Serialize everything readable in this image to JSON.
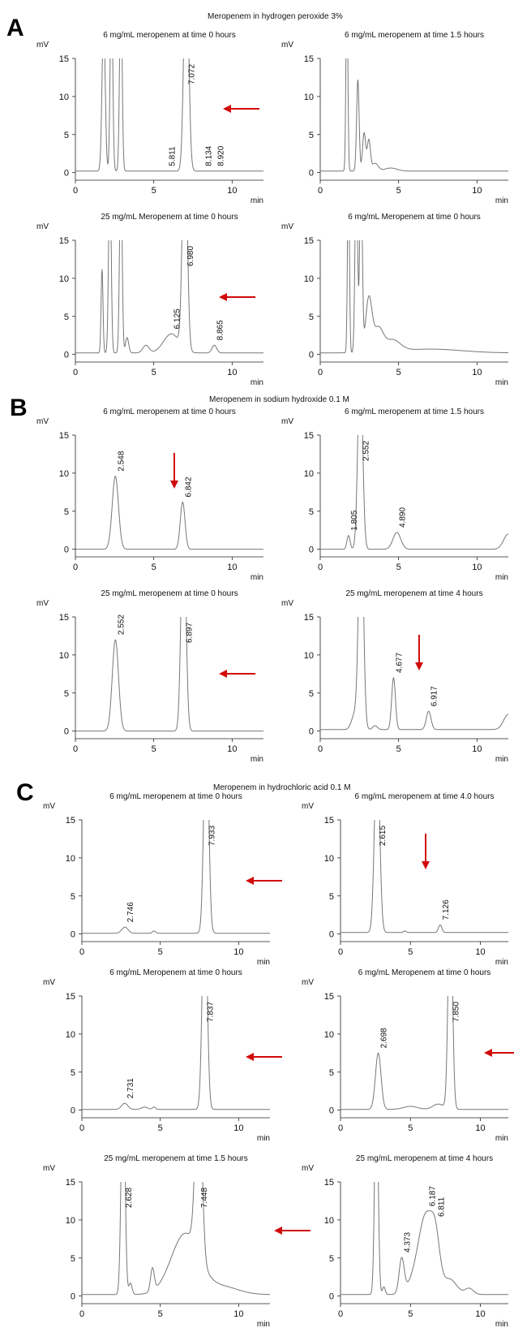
{
  "sections": [
    {
      "letter": "A",
      "title": "Meropenem in hydrogen peroxide 3%"
    },
    {
      "letter": "B",
      "title": "Meropenem in sodium hydroxide 0.1 M"
    },
    {
      "letter": "C",
      "title": "Meropenem in  hydrochloric acid 0.1 M"
    }
  ],
  "chart_data": [
    {
      "type": "line",
      "section": "A",
      "title": "6 mg/mL meropenem at time 0 hours",
      "ylabel": "mV",
      "xlabel": "min",
      "xlim": [
        0,
        12
      ],
      "ylim": [
        -1,
        15
      ],
      "xticks": [
        0,
        5,
        10
      ],
      "yticks": [
        0,
        5,
        10,
        15
      ],
      "peaks": [
        [
          1.8,
          1,
          0.1,
          20
        ],
        [
          2.3,
          1,
          0.08,
          25
        ],
        [
          2.9,
          1,
          0.08,
          25
        ],
        [
          5.811,
          0.3,
          0.25,
          0
        ],
        [
          7.072,
          1,
          0.15,
          30
        ],
        [
          8.134,
          0.2,
          0.2,
          0
        ],
        [
          8.92,
          0.2,
          0.2,
          0
        ]
      ],
      "baseline": 0.2,
      "annotations": [
        "5.811",
        "7.072",
        "8.134",
        "8.920"
      ],
      "arrow": "left"
    },
    {
      "type": "line",
      "section": "A",
      "title": "6 mg/mL meropenem at time 1.5 hours",
      "ylabel": "mV",
      "xlabel": "min",
      "xlim": [
        0,
        12
      ],
      "ylim": [
        -1,
        15
      ],
      "xticks": [
        0,
        5,
        10
      ],
      "yticks": [
        0,
        5,
        10,
        15
      ],
      "peaks": [
        [
          1.7,
          1,
          0.06,
          25
        ],
        [
          2.4,
          1,
          0.08,
          12
        ],
        [
          2.8,
          1,
          0.1,
          5
        ],
        [
          3.1,
          1,
          0.1,
          4
        ],
        [
          3.5,
          0.5,
          0.2,
          1
        ],
        [
          4.5,
          0.3,
          0.4,
          0.4
        ]
      ],
      "baseline": 0.2,
      "annotations": [],
      "arrow": ""
    },
    {
      "type": "line",
      "section": "A",
      "title": "25 mg/mL Meropenem at time 0 hours",
      "ylabel": "mV",
      "xlabel": "min",
      "xlim": [
        0,
        12
      ],
      "ylim": [
        -1,
        15
      ],
      "xticks": [
        0,
        5,
        10
      ],
      "yticks": [
        0,
        5,
        10,
        15
      ],
      "peaks": [
        [
          1.7,
          1,
          0.06,
          11
        ],
        [
          2.2,
          1,
          0.08,
          25
        ],
        [
          2.9,
          1,
          0.08,
          25
        ],
        [
          3.3,
          1,
          0.1,
          2
        ],
        [
          4.5,
          0.5,
          0.2,
          1
        ],
        [
          6.125,
          0.5,
          0.5,
          2.5
        ],
        [
          6.98,
          1,
          0.15,
          30
        ],
        [
          8.865,
          0.3,
          0.15,
          1
        ]
      ],
      "baseline": 0.2,
      "annotations": [
        "6.125",
        "6.980",
        "8.865"
      ],
      "arrow": "left"
    },
    {
      "type": "line",
      "section": "A",
      "title": "6 mg/mL Meropenem at time 0 hours",
      "ylabel": "mV",
      "xlabel": "min",
      "xlim": [
        0,
        12
      ],
      "ylim": [
        -1,
        15
      ],
      "xticks": [
        0,
        5,
        10
      ],
      "yticks": [
        0,
        5,
        10,
        15
      ],
      "peaks": [
        [
          1.8,
          1,
          0.06,
          25
        ],
        [
          2.3,
          1,
          0.08,
          25
        ],
        [
          2.6,
          1,
          0.08,
          25
        ],
        [
          3.1,
          1,
          0.2,
          7
        ],
        [
          3.7,
          1,
          0.3,
          3
        ],
        [
          4.6,
          1,
          0.5,
          1.5
        ],
        [
          7,
          1,
          2,
          0.5
        ]
      ],
      "baseline": 0.2,
      "annotations": [],
      "arrow": ""
    },
    {
      "type": "line",
      "section": "B",
      "title": "6 mg/mL meropenem at time 0 hours",
      "ylabel": "mV",
      "xlabel": "min",
      "xlim": [
        0,
        12
      ],
      "ylim": [
        -1,
        15
      ],
      "xticks": [
        0,
        5,
        10
      ],
      "yticks": [
        0,
        5,
        10,
        15
      ],
      "peaks": [
        [
          2.548,
          1,
          0.2,
          9.6
        ],
        [
          6.842,
          1,
          0.15,
          6.2
        ]
      ],
      "baseline": 0,
      "annotations": [
        "2.548",
        "6.842"
      ],
      "arrow": "down"
    },
    {
      "type": "line",
      "section": "B",
      "title": "6 mg/mL meropenem at time 1.5 hours",
      "ylabel": "mV",
      "xlabel": "min",
      "xlim": [
        0,
        12
      ],
      "ylim": [
        -1,
        15
      ],
      "xticks": [
        0,
        5,
        10
      ],
      "yticks": [
        0,
        5,
        10,
        15
      ],
      "peaks": [
        [
          1.805,
          1,
          0.1,
          1.8
        ],
        [
          2.552,
          1,
          0.15,
          25
        ],
        [
          4.89,
          1,
          0.25,
          2.2
        ],
        [
          12,
          1,
          0.3,
          2
        ]
      ],
      "baseline": 0,
      "annotations": [
        "1.805",
        "2.552",
        "4.890"
      ],
      "arrow": ""
    },
    {
      "type": "line",
      "section": "B",
      "title": "25 mg/mL meropenem at time 0 hours",
      "ylabel": "mV",
      "xlabel": "min",
      "xlim": [
        0,
        12
      ],
      "ylim": [
        -1,
        15
      ],
      "xticks": [
        0,
        5,
        10
      ],
      "yticks": [
        0,
        5,
        10,
        15
      ],
      "peaks": [
        [
          2.552,
          1,
          0.2,
          12
        ],
        [
          6.897,
          1,
          0.15,
          30
        ]
      ],
      "baseline": 0,
      "annotations": [
        "2.552",
        "6.897"
      ],
      "arrow": "left"
    },
    {
      "type": "line",
      "section": "B",
      "title": "25 mg/mL meropenem at time 4 hours",
      "ylabel": "mV",
      "xlabel": "min",
      "xlim": [
        0,
        12
      ],
      "ylim": [
        -1,
        15
      ],
      "xticks": [
        0,
        5,
        10
      ],
      "yticks": [
        0,
        5,
        10,
        15
      ],
      "peaks": [
        [
          2.2,
          1,
          0.2,
          2
        ],
        [
          2.6,
          1,
          0.15,
          30
        ],
        [
          3.5,
          1,
          0.15,
          0.5
        ],
        [
          4.677,
          1,
          0.12,
          6.8
        ],
        [
          6.917,
          1,
          0.15,
          2.4
        ],
        [
          12,
          1,
          0.3,
          2
        ]
      ],
      "baseline": 0.2,
      "annotations": [
        "4.677",
        "6.917"
      ],
      "arrow": "down"
    },
    {
      "type": "line",
      "section": "C",
      "title": "6 mg/mL meropenem at time 0 hours",
      "ylabel": "mV",
      "xlabel": "min",
      "xlim": [
        0,
        12
      ],
      "ylim": [
        -1,
        15
      ],
      "xticks": [
        0,
        5,
        10
      ],
      "yticks": [
        0,
        5,
        10,
        15
      ],
      "peaks": [
        [
          2.746,
          1,
          0.2,
          0.8
        ],
        [
          4.6,
          1,
          0.1,
          0.3
        ],
        [
          7.933,
          1,
          0.15,
          30
        ]
      ],
      "baseline": 0.1,
      "annotations": [
        "2.746",
        "7.933"
      ],
      "arrow": "left"
    },
    {
      "type": "line",
      "section": "C",
      "title": "6 mg/mL meropenem at time 4.0 hours",
      "ylabel": "mV",
      "xlabel": "min",
      "xlim": [
        0,
        12
      ],
      "ylim": [
        -1,
        15
      ],
      "xticks": [
        0,
        5,
        10
      ],
      "yticks": [
        0,
        5,
        10,
        15
      ],
      "peaks": [
        [
          2.615,
          1,
          0.18,
          25
        ],
        [
          4.6,
          1,
          0.1,
          0.2
        ],
        [
          7.126,
          1,
          0.12,
          1
        ]
      ],
      "baseline": 0.2,
      "annotations": [
        "2.615",
        "7.126"
      ],
      "arrow": "down"
    },
    {
      "type": "line",
      "section": "C",
      "title": "6 mg/mL Meropenem at time 0 hours",
      "ylabel": "mV",
      "xlabel": "min",
      "xlim": [
        0,
        12
      ],
      "ylim": [
        -1,
        15
      ],
      "xticks": [
        0,
        5,
        10
      ],
      "yticks": [
        0,
        5,
        10,
        15
      ],
      "peaks": [
        [
          2.731,
          1,
          0.2,
          0.8
        ],
        [
          4,
          1,
          0.2,
          0.3
        ],
        [
          4.6,
          1,
          0.1,
          0.3
        ],
        [
          7.837,
          1,
          0.15,
          30
        ]
      ],
      "baseline": 0.1,
      "annotations": [
        "2.731",
        "7.837"
      ],
      "arrow": "left"
    },
    {
      "type": "line",
      "section": "C",
      "title": "6 mg/mL Meropenem at time 0 hours",
      "ylabel": "mV",
      "xlabel": "min",
      "xlim": [
        0,
        12
      ],
      "ylim": [
        -1,
        15
      ],
      "xticks": [
        0,
        5,
        10
      ],
      "yticks": [
        0,
        5,
        10,
        15
      ],
      "peaks": [
        [
          2.698,
          1,
          0.2,
          7.4
        ],
        [
          5,
          1,
          0.5,
          0.4
        ],
        [
          7,
          1,
          0.4,
          0.7
        ],
        [
          7.85,
          1,
          0.15,
          30
        ]
      ],
      "baseline": 0.1,
      "annotations": [
        "2.698",
        "7.850"
      ],
      "arrow": "left"
    },
    {
      "type": "line",
      "section": "C",
      "title": "25 mg/mL meropenem at time 1.5 hours",
      "ylabel": "mV",
      "xlabel": "min",
      "xlim": [
        0,
        12
      ],
      "ylim": [
        -1,
        15
      ],
      "xticks": [
        0,
        5,
        10
      ],
      "yticks": [
        0,
        5,
        10,
        15
      ],
      "peaks": [
        [
          2.628,
          1,
          0.12,
          30
        ],
        [
          3.1,
          1,
          0.1,
          1.5
        ],
        [
          4.5,
          1,
          0.12,
          3
        ],
        [
          6.6,
          1,
          0.9,
          8
        ],
        [
          7.448,
          1,
          0.2,
          25
        ],
        [
          9,
          1,
          1,
          1
        ]
      ],
      "baseline": 0.2,
      "annotations": [
        "2.628",
        "7.448"
      ],
      "arrow": "left"
    },
    {
      "type": "line",
      "section": "C",
      "title": "25 mg/mL meropenem at time 4 hours",
      "ylabel": "mV",
      "xlabel": "min",
      "xlim": [
        0,
        12
      ],
      "ylim": [
        -1,
        15
      ],
      "xticks": [
        0,
        5,
        10
      ],
      "yticks": [
        0,
        5,
        10,
        15
      ],
      "peaks": [
        [
          2.566,
          1,
          0.12,
          30
        ],
        [
          3.1,
          1,
          0.1,
          1
        ],
        [
          4.373,
          1,
          0.18,
          4.5
        ],
        [
          6.187,
          1,
          0.5,
          8.5
        ],
        [
          6.811,
          1,
          0.3,
          5
        ],
        [
          5.6,
          1,
          0.6,
          3
        ],
        [
          7.8,
          1,
          0.5,
          2
        ],
        [
          9.2,
          1,
          0.3,
          0.8
        ]
      ],
      "baseline": 0.2,
      "annotations": [
        "4.373",
        "6.187",
        "6.811"
      ],
      "arrow": ""
    }
  ]
}
